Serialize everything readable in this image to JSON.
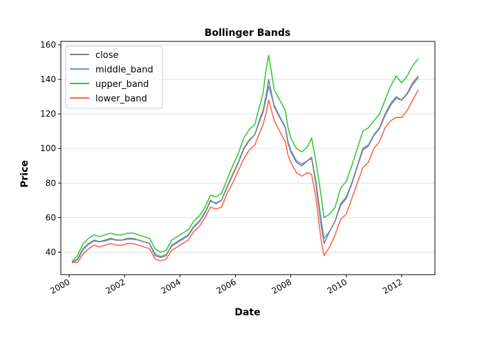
{
  "chart_data": {
    "type": "line",
    "title": "Bollinger Bands",
    "xlabel": "Date",
    "ylabel": "Price",
    "xlim": [
      1999.7,
      2013.2
    ],
    "ylim": [
      27,
      162
    ],
    "xticks": [
      2000,
      2002,
      2004,
      2006,
      2008,
      2010,
      2012
    ],
    "xtick_labels": [
      "2000",
      "2002",
      "2004",
      "2006",
      "2008",
      "2010",
      "2012"
    ],
    "yticks": [
      40,
      60,
      80,
      100,
      120,
      140,
      160
    ],
    "ytick_labels": [
      "40",
      "60",
      "80",
      "100",
      "120",
      "140",
      "160"
    ],
    "grid": "horizontal",
    "legend_position": "top-left",
    "x": [
      2000.1,
      2000.3,
      2000.5,
      2000.7,
      2000.9,
      2001.1,
      2001.3,
      2001.5,
      2001.7,
      2001.9,
      2002.1,
      2002.3,
      2002.5,
      2002.7,
      2002.9,
      2003.1,
      2003.3,
      2003.5,
      2003.7,
      2003.9,
      2004.1,
      2004.3,
      2004.5,
      2004.7,
      2004.9,
      2005.1,
      2005.3,
      2005.5,
      2005.7,
      2005.9,
      2006.1,
      2006.3,
      2006.5,
      2006.7,
      2006.9,
      2007.0,
      2007.1,
      2007.2,
      2007.4,
      2007.6,
      2007.8,
      2007.9,
      2008.0,
      2008.2,
      2008.4,
      2008.6,
      2008.75,
      2008.9,
      2009.1,
      2009.2,
      2009.4,
      2009.6,
      2009.8,
      2010.0,
      2010.2,
      2010.4,
      2010.6,
      2010.8,
      2011.0,
      2011.2,
      2011.4,
      2011.6,
      2011.8,
      2012.0,
      2012.2,
      2012.4,
      2012.6
    ],
    "series": [
      {
        "name": "close",
        "color": "#808080",
        "values": [
          34,
          36,
          42,
          45,
          47,
          46,
          47,
          48,
          47,
          47,
          48,
          48,
          47,
          46,
          45,
          38,
          37,
          38,
          44,
          46,
          48,
          50,
          55,
          58,
          63,
          70,
          68,
          70,
          78,
          85,
          92,
          100,
          105,
          108,
          118,
          122,
          130,
          140,
          124,
          118,
          112,
          103,
          98,
          92,
          90,
          93,
          95,
          80,
          55,
          45,
          52,
          58,
          68,
          72,
          80,
          90,
          100,
          102,
          108,
          112,
          120,
          126,
          130,
          128,
          132,
          138,
          142
        ]
      },
      {
        "name": "middle_band",
        "color": "#6495ED",
        "values": [
          34,
          35.5,
          41.5,
          44.5,
          46.5,
          46,
          46.5,
          47.5,
          47,
          47,
          47.5,
          47.5,
          47,
          46,
          45,
          39,
          37.5,
          38.5,
          43.5,
          45.5,
          47.5,
          49.5,
          54.5,
          57.5,
          62.5,
          69.5,
          68.5,
          70,
          77.5,
          84.5,
          91.5,
          99.5,
          104.5,
          108,
          117,
          121,
          128,
          136,
          125,
          118.5,
          112.5,
          104,
          99,
          93,
          91,
          93,
          94,
          82,
          58,
          48,
          52,
          58,
          67,
          71,
          79.5,
          89.5,
          99,
          101.5,
          107.5,
          111.5,
          119,
          125,
          129,
          128,
          131.5,
          137,
          141
        ]
      },
      {
        "name": "upper_band",
        "color": "#32CD32",
        "values": [
          34.5,
          38,
          45,
          48,
          50,
          49,
          50,
          51,
          50,
          50,
          51,
          51,
          50,
          49,
          48,
          42,
          40,
          41,
          47,
          49,
          51,
          53,
          58,
          61,
          66,
          73,
          72,
          74,
          82,
          90,
          97,
          106,
          111,
          114,
          126,
          132,
          145,
          154,
          134,
          128,
          122,
          112,
          106,
          100,
          98,
          101,
          106,
          93,
          72,
          60,
          62,
          66,
          77,
          81,
          90,
          100,
          110,
          112,
          116,
          120,
          128,
          136,
          142,
          138,
          142,
          148,
          152
        ]
      },
      {
        "name": "lower_band",
        "color": "#FF6347",
        "values": [
          34,
          34,
          39,
          42,
          44,
          43,
          44,
          45,
          44,
          44,
          45,
          45,
          44,
          43,
          42,
          36,
          35,
          36,
          41,
          43,
          45,
          47,
          52,
          55,
          60,
          66,
          65,
          66,
          74,
          80,
          87,
          94,
          99,
          102,
          110,
          114,
          120,
          128,
          116,
          110,
          104,
          96,
          92,
          86,
          84,
          86,
          85,
          72,
          46,
          38,
          43,
          50,
          59,
          62,
          71,
          80,
          89,
          92,
          100,
          104,
          112,
          116,
          118,
          118,
          122,
          128,
          134
        ]
      }
    ]
  }
}
